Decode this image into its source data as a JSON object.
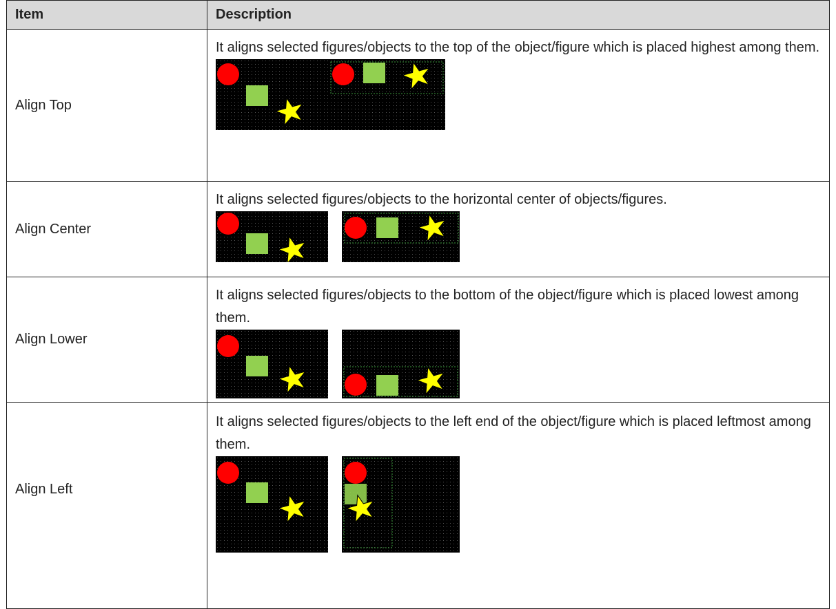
{
  "header": {
    "columns": [
      "Item",
      "Description"
    ]
  },
  "table": {
    "rows": [
      [
        "Align Top",
        "It aligns selected figures/objects to the top of the object/figure which is placed highest among them."
      ],
      [
        "Align Center",
        "It aligns selected figures/objects to the horizontal center of objects/figures."
      ],
      [
        "Align Lower",
        "It aligns selected figures/objects to the bottom of the object/figure which is placed lowest among them."
      ],
      [
        "Align Left",
        "It aligns selected figures/objects to the left end of the object/figure which is placed leftmost among them."
      ]
    ]
  }
}
